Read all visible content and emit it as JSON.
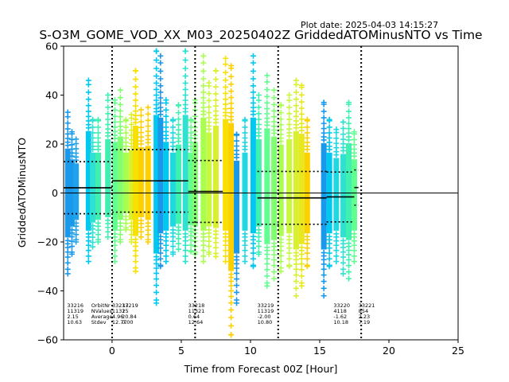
{
  "plot_date": "Plot date: 2025-04-03 14:15:27",
  "chart_data": {
    "type": "scatter",
    "title": "S-O3M_GOME_VOD_XX_M03_20250402Z GriddedATOMinusNTO vs Time",
    "xlabel": "Time from Forecast 00Z [Hour]",
    "ylabel": "GriddedATOMinusNTO",
    "xlim": [
      -3.5,
      25
    ],
    "ylim": [
      -60,
      60
    ],
    "xticks": [
      0,
      5,
      10,
      15,
      20,
      25
    ],
    "yticks": [
      -60,
      -40,
      -20,
      0,
      20,
      40,
      60
    ],
    "grid": false,
    "zero_line": 0,
    "forecast_markers": [
      0,
      6,
      12,
      18
    ],
    "stats_header": [
      "OrbitNr",
      "NValues",
      "Average",
      "Stdev"
    ],
    "orbits": [
      {
        "orbit": "33216",
        "nvalues": "11319",
        "average": "2.15",
        "stdev": "10.63",
        "t_start": -3.5,
        "t_end": 0.0,
        "mean": 2.15,
        "sd": 10.63
      },
      {
        "orbit": "33217",
        "nvalues": "11325",
        "average": "4.96",
        "stdev": "12.77",
        "t_start": 0.0,
        "t_end": 5.5,
        "mean": 4.96,
        "sd": 12.77
      },
      {
        "orbit": "33218",
        "nvalues": "11321",
        "average": "0.64",
        "stdev": "12.64",
        "t_start": 5.5,
        "t_end": 8.0,
        "mean": 0.64,
        "sd": 12.64
      },
      {
        "orbit": "33219",
        "nvalues": "11319",
        "average": "-2.00",
        "stdev": "10.80",
        "t_start": 10.5,
        "t_end": 15.5,
        "mean": -2.0,
        "sd": 10.8
      },
      {
        "orbit": "33220",
        "nvalues": "4118",
        "average": "-1.62",
        "stdev": "10.18",
        "t_start": 15.5,
        "t_end": 17.5,
        "mean": -1.62,
        "sd": 10.18
      },
      {
        "orbit": "33221",
        "nvalues": "854",
        "average": "2.23",
        "stdev": "7.19",
        "t_start": 17.5,
        "t_end": 17.8,
        "mean": 2.23,
        "sd": 7.19
      }
    ],
    "extra_stat_column": {
      "orbit": "33219",
      "nvalues": "1",
      "average": "20.84",
      "stdev": "0.00"
    },
    "series": [
      {
        "x": -3.2,
        "low": -33,
        "high": 33,
        "color": "#1a99ea"
      },
      {
        "x": -2.9,
        "low": -25,
        "high": 25,
        "color": "#1a99ea"
      },
      {
        "x": -2.6,
        "low": -20,
        "high": 22,
        "color": "#1fa3ee"
      },
      {
        "x": -1.7,
        "low": -28,
        "high": 46,
        "color": "#00c8f0"
      },
      {
        "x": -1.4,
        "low": -22,
        "high": 30,
        "color": "#30e0d0"
      },
      {
        "x": -1.0,
        "low": -20,
        "high": 30,
        "color": "#40f0b0"
      },
      {
        "x": -0.3,
        "low": -18,
        "high": 40,
        "color": "#40f0b0"
      },
      {
        "x": 0.2,
        "low": -28,
        "high": 38,
        "color": "#60ff90"
      },
      {
        "x": 0.6,
        "low": -20,
        "high": 42,
        "color": "#80ff70"
      },
      {
        "x": 1.0,
        "low": -15,
        "high": 30,
        "color": "#a8ff50"
      },
      {
        "x": 1.4,
        "low": -20,
        "high": 32,
        "color": "#d8f030"
      },
      {
        "x": 1.7,
        "low": -32,
        "high": 50,
        "color": "#f8e000"
      },
      {
        "x": 2.1,
        "low": -18,
        "high": 34,
        "color": "#ffd000"
      },
      {
        "x": 2.6,
        "low": -20,
        "high": 35,
        "color": "#ffd000"
      },
      {
        "x": 3.2,
        "low": -45,
        "high": 58,
        "color": "#00c8f0"
      },
      {
        "x": 3.5,
        "low": -30,
        "high": 56,
        "color": "#1a99ea"
      },
      {
        "x": 3.9,
        "low": -28,
        "high": 38,
        "color": "#00c8f0"
      },
      {
        "x": 4.4,
        "low": -25,
        "high": 30,
        "color": "#20d8e0"
      },
      {
        "x": 4.8,
        "low": -23,
        "high": 36,
        "color": "#40f0b0"
      },
      {
        "x": 5.3,
        "low": -28,
        "high": 58,
        "color": "#30e0d0"
      },
      {
        "x": 5.7,
        "low": -24,
        "high": 30,
        "color": "#60ff90"
      },
      {
        "x": 6.0,
        "low": -25,
        "high": 38,
        "color": "#80ff70"
      },
      {
        "x": 6.6,
        "low": -28,
        "high": 56,
        "color": "#a8ff50"
      },
      {
        "x": 7.0,
        "low": -25,
        "high": 45,
        "color": "#c8f840"
      },
      {
        "x": 7.5,
        "low": -26,
        "high": 50,
        "color": "#d8f030"
      },
      {
        "x": 8.2,
        "low": -28,
        "high": 55,
        "color": "#f8e000"
      },
      {
        "x": 8.6,
        "low": -58,
        "high": 52,
        "color": "#ffd000"
      },
      {
        "x": 9.0,
        "low": -45,
        "high": 24,
        "color": "#1a99ea"
      },
      {
        "x": 9.6,
        "low": -28,
        "high": 30,
        "color": "#20d8e0"
      },
      {
        "x": 10.2,
        "low": -30,
        "high": 56,
        "color": "#00c8f0"
      },
      {
        "x": 10.6,
        "low": -25,
        "high": 40,
        "color": "#40f0b0"
      },
      {
        "x": 11.2,
        "low": -38,
        "high": 48,
        "color": "#60ff90"
      },
      {
        "x": 11.7,
        "low": -35,
        "high": 42,
        "color": "#80ff70"
      },
      {
        "x": 12.2,
        "low": -32,
        "high": 36,
        "color": "#a8ff50"
      },
      {
        "x": 12.8,
        "low": -30,
        "high": 40,
        "color": "#c8f840"
      },
      {
        "x": 13.3,
        "low": -42,
        "high": 46,
        "color": "#d8f030"
      },
      {
        "x": 13.7,
        "low": -38,
        "high": 44,
        "color": "#e8e820"
      },
      {
        "x": 14.1,
        "low": -30,
        "high": 30,
        "color": "#ffd000"
      },
      {
        "x": 15.3,
        "low": -42,
        "high": 37,
        "color": "#1a99ea"
      },
      {
        "x": 15.7,
        "low": -30,
        "high": 30,
        "color": "#00c8f0"
      },
      {
        "x": 16.2,
        "low": -28,
        "high": 26,
        "color": "#20d8e0"
      },
      {
        "x": 16.7,
        "low": -33,
        "high": 29,
        "color": "#30e0d0"
      },
      {
        "x": 17.1,
        "low": -35,
        "high": 37,
        "color": "#40f0b0"
      },
      {
        "x": 17.5,
        "low": -28,
        "high": 25,
        "color": "#60ff90"
      }
    ]
  }
}
